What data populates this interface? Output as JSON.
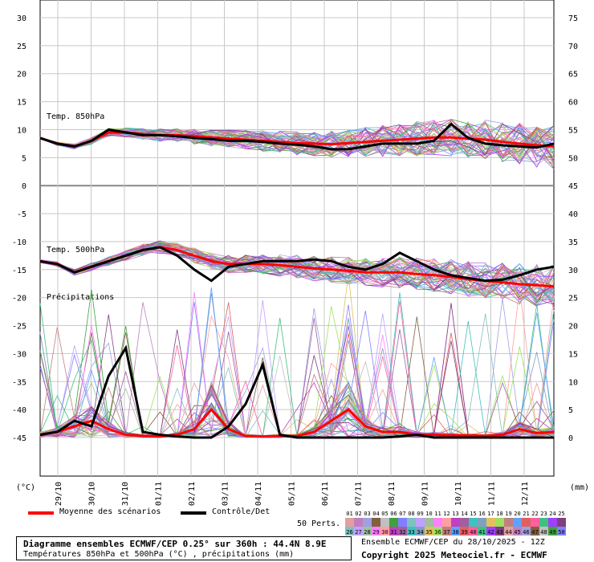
{
  "chart_data": {
    "type": "line",
    "x_ticks": [
      "29/10",
      "30/10",
      "31/10",
      "01/11",
      "02/11",
      "03/11",
      "04/11",
      "05/11",
      "06/11",
      "07/11",
      "08/11",
      "09/11",
      "10/11",
      "11/11",
      "12/11"
    ],
    "left_axis": {
      "unit": "(°C)",
      "ticks": [
        30,
        25,
        20,
        15,
        10,
        5,
        0,
        -5,
        -10,
        -15,
        -20,
        -25,
        -30,
        -35,
        -40,
        -45
      ],
      "range": [
        -45,
        30
      ]
    },
    "right_axis": {
      "unit": "(mm)",
      "ticks": [
        75,
        70,
        65,
        60,
        55,
        50,
        45,
        40,
        35,
        30,
        25,
        20,
        15,
        10,
        5,
        0
      ],
      "range": [
        0,
        75
      ]
    },
    "panel_labels": {
      "t850": "Temp. 850hPa",
      "t500": "Temp. 500hPa",
      "precip": "Précipitations"
    },
    "series": [
      {
        "name": "Moyenne des scénarios",
        "color": "#ff0000",
        "t850": [
          8.5,
          7.5,
          7,
          8,
          9.5,
          9.5,
          9.2,
          9,
          9,
          8.8,
          8.6,
          8.4,
          8.2,
          8,
          7.8,
          7.6,
          7.5,
          7.4,
          7.6,
          7.8,
          8,
          8.2,
          8.4,
          8.6,
          8.6,
          8.4,
          8.2,
          7.8,
          7.5,
          7.2,
          7
        ],
        "t500": [
          -13.5,
          -14,
          -15.5,
          -14.5,
          -13.5,
          -12.5,
          -11.5,
          -11,
          -11.5,
          -12.5,
          -13.5,
          -14,
          -14,
          -14,
          -14.2,
          -14.5,
          -14.8,
          -15,
          -15.2,
          -15.5,
          -15.5,
          -15.5,
          -15.8,
          -16,
          -16.3,
          -16.7,
          -17,
          -17.3,
          -17.6,
          -17.8,
          -18
        ],
        "precip": [
          0.5,
          1,
          2,
          3,
          1.5,
          0.5,
          0.3,
          0.2,
          0.5,
          1.5,
          5,
          1.5,
          0.3,
          0.2,
          0.3,
          0.3,
          1,
          3,
          5,
          2,
          1,
          1,
          0.5,
          0.5,
          0.4,
          0.4,
          0.3,
          0.5,
          1.5,
          0.8,
          1
        ]
      },
      {
        "name": "Contrôle/Det",
        "color": "#000000",
        "t850": [
          8.5,
          7.5,
          7,
          8,
          10,
          9.5,
          9,
          9,
          8.8,
          8.5,
          8.3,
          8,
          8,
          7.8,
          7.5,
          7.3,
          7,
          6.5,
          6.5,
          7,
          7.5,
          7.5,
          7.5,
          8,
          11,
          8.5,
          7.5,
          7.2,
          7,
          6.8,
          7.5
        ],
        "t500": [
          -13.5,
          -14,
          -15.5,
          -14.5,
          -13.5,
          -12.5,
          -11.5,
          -11,
          -12.5,
          -15,
          -17,
          -14.5,
          -14,
          -13.5,
          -13.5,
          -13.5,
          -13.2,
          -13.5,
          -14.5,
          -15,
          -14,
          -12,
          -13.5,
          -15,
          -16,
          -16.5,
          -17,
          -16.8,
          -16,
          -15,
          -14.5
        ],
        "precip": [
          0.5,
          1,
          3,
          2,
          11,
          16,
          1,
          0.5,
          0.2,
          0,
          0,
          2,
          6,
          13,
          0.5,
          0,
          0,
          0,
          0,
          0,
          0,
          0.2,
          0.5,
          0,
          0,
          0,
          0,
          0,
          0,
          0,
          0
        ]
      }
    ],
    "legend_perts_label": "50 Perts.",
    "perts_numbers_row1": [
      "01",
      "02",
      "03",
      "04",
      "05",
      "06",
      "07",
      "08",
      "09",
      "10",
      "11",
      "12",
      "13",
      "14",
      "15",
      "16",
      "17",
      "18",
      "19",
      "20",
      "21",
      "22",
      "23",
      "24",
      "25"
    ],
    "perts_numbers_row2": [
      "26",
      "27",
      "28",
      "29",
      "30",
      "31",
      "32",
      "33",
      "34",
      "35",
      "36",
      "37",
      "38",
      "39",
      "40",
      "41",
      "42",
      "43",
      "44",
      "45",
      "46",
      "47",
      "48",
      "49",
      "50"
    ],
    "perts_colors": [
      "#e0a0a0",
      "#c080c0",
      "#a0a0e0",
      "#806040",
      "#c0c0c0",
      "#40a040",
      "#8080ff",
      "#80c0c0",
      "#c0a0ff",
      "#a0c0a0",
      "#ff80ff",
      "#ffa0a0",
      "#c040c0",
      "#a060a0",
      "#40c0c0",
      "#80a0c0",
      "#e0c060",
      "#a0e060",
      "#c08080",
      "#60a0ff",
      "#e06060",
      "#ff60a0",
      "#40c080",
      "#a040ff",
      "#804080"
    ]
  },
  "legend": {
    "mean_label": "Moyenne des scénarios",
    "control_label": "Contrôle/Det"
  },
  "title": {
    "line1": "Diagramme ensembles ECMWF/CEP 0.25° sur 360h : 44.4N 8.9E",
    "line2": "Températures 850hPa et 500hPa (°C) , précipitations (mm)"
  },
  "info": {
    "run": "Ensemble ECMWF/CEP du 28/10/2025 - 12Z",
    "copyright": "Copyright 2025 Meteociel.fr - ECMWF"
  }
}
